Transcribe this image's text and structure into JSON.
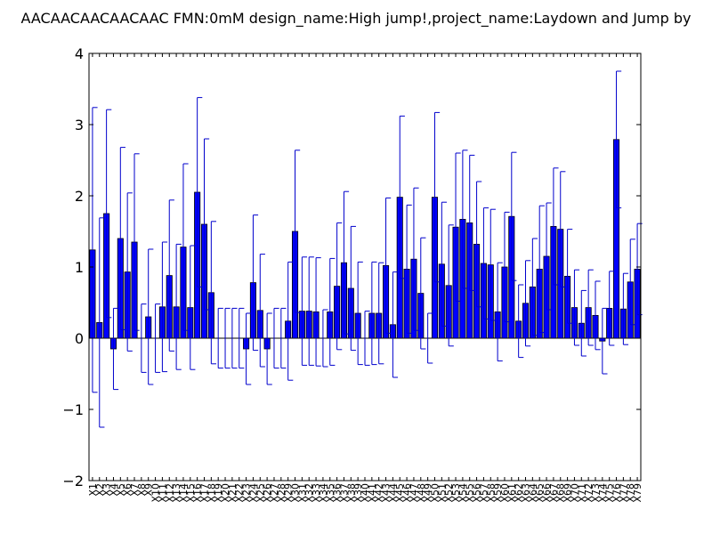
{
  "chart_data": {
    "type": "bar",
    "title": "AACAACAACAACAAC  FMN:0mM  design_name:High jump!,project_name:Laydown and Jump by",
    "xlabel": "",
    "ylabel": "",
    "ylim": [
      -2,
      4
    ],
    "yticks": [
      -2,
      -1,
      0,
      1,
      2,
      3,
      4
    ],
    "ytick_labels": [
      "−2",
      "−1",
      "0",
      "1",
      "2",
      "3",
      "4"
    ],
    "grid": false,
    "bar_color": "#0000ff",
    "error_color": "#0000cc",
    "categories": [
      "X1",
      "X2",
      "X3",
      "X4",
      "X5",
      "X6",
      "X7",
      "X8",
      "X9",
      "X10",
      "X11",
      "X12",
      "X13",
      "X14",
      "X15",
      "X16",
      "X17",
      "X18",
      "X19",
      "X20",
      "X21",
      "X22",
      "X23",
      "X24",
      "X25",
      "X26",
      "X27",
      "X28",
      "X29",
      "X30",
      "X31",
      "X32",
      "X33",
      "X34",
      "X35",
      "X36",
      "X37",
      "X38",
      "X39",
      "X40",
      "X41",
      "X42",
      "X43",
      "X44",
      "X45",
      "X46",
      "X47",
      "X48",
      "X49",
      "X50",
      "X51",
      "X52",
      "X53",
      "X54",
      "X55",
      "X56",
      "X57",
      "X58",
      "X59",
      "X60",
      "X61",
      "X62",
      "X63",
      "X64",
      "X65",
      "X66",
      "X67",
      "X68",
      "X69",
      "X70",
      "X71",
      "X72",
      "X73",
      "X74",
      "X75",
      "X76",
      "X77",
      "X78",
      "X79"
    ],
    "values": [
      1.24,
      0.22,
      1.75,
      -0.15,
      1.4,
      0.93,
      1.35,
      0.0,
      0.3,
      0.0,
      0.44,
      0.88,
      0.44,
      1.28,
      0.43,
      2.05,
      1.6,
      0.64,
      0.0,
      0.0,
      0.0,
      0.0,
      -0.15,
      0.78,
      0.39,
      -0.15,
      0.0,
      0.0,
      0.24,
      1.5,
      0.38,
      0.38,
      0.37,
      0.0,
      0.37,
      0.73,
      1.06,
      0.7,
      0.35,
      0.0,
      0.35,
      0.35,
      1.02,
      0.19,
      1.98,
      0.97,
      1.11,
      0.63,
      0.0,
      1.98,
      1.04,
      0.74,
      1.56,
      1.67,
      1.62,
      1.32,
      1.05,
      1.03,
      0.37,
      1.0,
      1.71,
      0.24,
      0.49,
      0.72,
      0.97,
      1.15,
      1.57,
      1.53,
      0.87,
      0.43,
      0.21,
      0.43,
      0.32,
      -0.04,
      0.42,
      2.79,
      0.41,
      0.79,
      0.97
    ],
    "errors": [
      2.0,
      1.47,
      1.46,
      0.57,
      1.28,
      1.11,
      1.24,
      0.48,
      0.95,
      0.48,
      0.91,
      1.06,
      0.88,
      1.17,
      0.87,
      1.33,
      1.2,
      1.0,
      0.42,
      0.42,
      0.42,
      0.42,
      0.5,
      0.95,
      0.79,
      0.5,
      0.42,
      0.42,
      0.83,
      1.14,
      0.76,
      0.76,
      0.76,
      0.4,
      0.75,
      0.89,
      1.0,
      0.87,
      0.72,
      0.38,
      0.72,
      0.71,
      0.95,
      0.74,
      1.14,
      0.9,
      1.0,
      0.78,
      0.35,
      1.19,
      0.87,
      0.85,
      1.04,
      0.97,
      0.95,
      0.88,
      0.78,
      0.78,
      0.69,
      0.77,
      0.9,
      0.51,
      0.6,
      0.68,
      0.89,
      0.75,
      0.82,
      0.81,
      0.66,
      0.53,
      0.46,
      0.53,
      0.48,
      0.46,
      0.52,
      0.96,
      0.5,
      0.6,
      0.64
    ]
  }
}
